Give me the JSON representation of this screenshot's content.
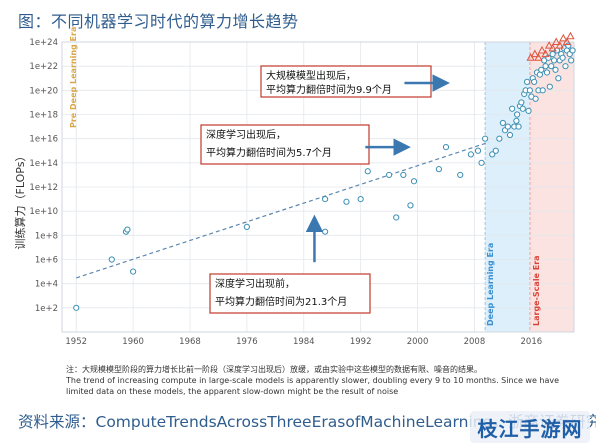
{
  "figure": {
    "title": "图：不同机器学习时代的算力增长趋势",
    "note_cn": "注：大规模模型阶段的算力增长比前一阶段（深度学习出现后）放缓，或由实验中这些模型的数据有限、噪音的结果。",
    "note_en": "The trend of increasing compute in large-scale models is apparently slower, doubling every 9 to 10 months. Since we have limited data on these models, the apparent slow-down might be the result of noise",
    "source": "资料来源：ComputeTrendsAcrossThreeErasofMachineLearning，浙商证券研究所",
    "watermark": "枝江手游网"
  },
  "colors": {
    "title": "#2f5d8e",
    "point": "#3b8fb3",
    "large_scale_point": "#e0523c",
    "trend_line": "#5b86b0",
    "arrow": "#3c78b0",
    "pre_dl_text": "#d9a84a",
    "dl_band": "#dceffa",
    "ls_band": "#fbe3e1",
    "dl_text": "#3b8fd0",
    "ls_text": "#d8453a",
    "callout_border": "#c0392b"
  },
  "chart_data": {
    "type": "scatter",
    "ylabel": "训练算力（FLOPs）",
    "xlabel": "",
    "log_y": true,
    "xlim": [
      1950,
      2022
    ],
    "ylim": [
      1,
      1e+24
    ],
    "x_ticks": [
      "1952",
      "1960",
      "1968",
      "1976",
      "1984",
      "1992",
      "2000",
      "2008",
      "2016"
    ],
    "y_ticks": [
      "1e+2",
      "1e+4",
      "1e+6",
      "1e+8",
      "1e+10",
      "1e+12",
      "1e+14",
      "1e+16",
      "1e+18",
      "1e+20",
      "1e+22",
      "1e+24"
    ],
    "grid": true,
    "eras": [
      {
        "name": "Pre Deep Learning Era",
        "start": 1950,
        "end": 2009.5
      },
      {
        "name": "Deep Learning Era",
        "start": 2009.5,
        "end": 2015.8
      },
      {
        "name": "Large-Scale Era",
        "start": 2015.8,
        "end": 2022
      }
    ],
    "trend_line": {
      "from": [
        1952,
        30000.0
      ],
      "to": [
        2010,
        5000000000000000.0
      ]
    },
    "series": [
      {
        "points": [
          [
            1952,
            100
          ],
          [
            1957,
            1000000.0
          ],
          [
            1959,
            200000000.0
          ],
          [
            1959.2,
            300000000.0
          ],
          [
            1960,
            100000.0
          ],
          [
            1976,
            500000000.0
          ],
          [
            1987,
            100000000000.0
          ],
          [
            1987,
            200000000.0
          ],
          [
            1990,
            60000000000.0
          ],
          [
            1992,
            100000000000.0
          ],
          [
            1993,
            20000000000000.0
          ],
          [
            1996,
            10000000000000.0
          ],
          [
            1997,
            3000000000.0
          ],
          [
            1998,
            10000000000000.0
          ],
          [
            1999,
            30000000000.0
          ],
          [
            1999.5,
            3000000000000.0
          ],
          [
            2003,
            30000000000000.0
          ],
          [
            2004,
            2000000000000000.0
          ],
          [
            2006,
            10000000000000.0
          ],
          [
            2007.5,
            500000000000000.0
          ],
          [
            2008.5,
            1000000000000000.0
          ],
          [
            2009,
            100000000000000.0
          ],
          [
            2009.5,
            1e+16
          ],
          [
            2010.5,
            500000000000000.0
          ],
          [
            2011,
            1000000000000000.0
          ],
          [
            2011.5,
            1e+16
          ],
          [
            2012,
            2e+17
          ],
          [
            2012.3,
            5e+16
          ],
          [
            2012.7,
            1e+17
          ],
          [
            2013,
            2e+16
          ],
          [
            2013.3,
            3e+18
          ],
          [
            2013.6,
            1e+17
          ],
          [
            2013.9,
            3e+17
          ],
          [
            2014,
            1e+18
          ],
          [
            2014.2,
            1e+17
          ],
          [
            2014.4,
            5e+18
          ],
          [
            2014.6,
            1e+19
          ],
          [
            2014.8,
            3e+18
          ],
          [
            2015,
            5e+19
          ],
          [
            2015.2,
            1e+20
          ],
          [
            2015.4,
            5e+20
          ],
          [
            2015.6,
            2e+18
          ],
          [
            2015.8,
            1e+20
          ],
          [
            2016,
            3e+19
          ],
          [
            2016.2,
            1e+21
          ],
          [
            2016.4,
            5e+20
          ],
          [
            2016.6,
            2e+19
          ],
          [
            2016.8,
            3e+21
          ],
          [
            2017,
            1e+20
          ],
          [
            2017.2,
            2e+21
          ],
          [
            2017.4,
            5e+21
          ],
          [
            2017.6,
            1e+20
          ],
          [
            2017.8,
            3e+22
          ],
          [
            2018,
            1e+22
          ],
          [
            2018.2,
            3e+21
          ],
          [
            2018.4,
            5e+22
          ],
          [
            2018.6,
            2e+20
          ],
          [
            2018.8,
            1e+22
          ],
          [
            2019,
            1e+23
          ],
          [
            2019.2,
            3e+22
          ],
          [
            2019.4,
            5e+21
          ],
          [
            2019.6,
            2e+23
          ],
          [
            2019.8,
            1e+21
          ],
          [
            2020,
            3e+22
          ],
          [
            2020.2,
            1e+23
          ],
          [
            2020.4,
            5e+22
          ],
          [
            2020.6,
            3e+23
          ],
          [
            2020.8,
            1e+22
          ],
          [
            2021,
            2e+23
          ],
          [
            2021.2,
            5e+23
          ],
          [
            2021.4,
            1e+23
          ],
          [
            2021.6,
            3e+22
          ],
          [
            2021.8,
            2e+23
          ]
        ]
      },
      {
        "marker": "triangle",
        "points": [
          [
            2015.9,
            5e+22
          ],
          [
            2016.5,
            1e+23
          ],
          [
            2017,
            5e+22
          ],
          [
            2017.5,
            2e+23
          ],
          [
            2018,
            1e+23
          ],
          [
            2018.5,
            5e+23
          ],
          [
            2019,
            3e+23
          ],
          [
            2019.5,
            1e+24
          ],
          [
            2020,
            5e+23
          ],
          [
            2020.5,
            2e+24
          ],
          [
            2021,
            1e+24
          ],
          [
            2021.5,
            3e+24
          ]
        ]
      }
    ],
    "annotations": [
      {
        "line1": "大规模模型出现后，",
        "line2": "平均算力翻倍时间为9.9个月",
        "arrow": "right",
        "anchor": [
          2003.5,
          4e+20
        ]
      },
      {
        "line1": "深度学习出现后，",
        "line2": "平均算力翻倍时间为5.7个月",
        "arrow": "right",
        "anchor": [
          1998,
          2000000000000000.0
        ]
      },
      {
        "line1": "深度学习出现前，",
        "line2": "平均算力翻倍时间为21.3个月",
        "arrow": "up",
        "anchor": [
          1985.5,
          600000.0
        ]
      }
    ]
  }
}
